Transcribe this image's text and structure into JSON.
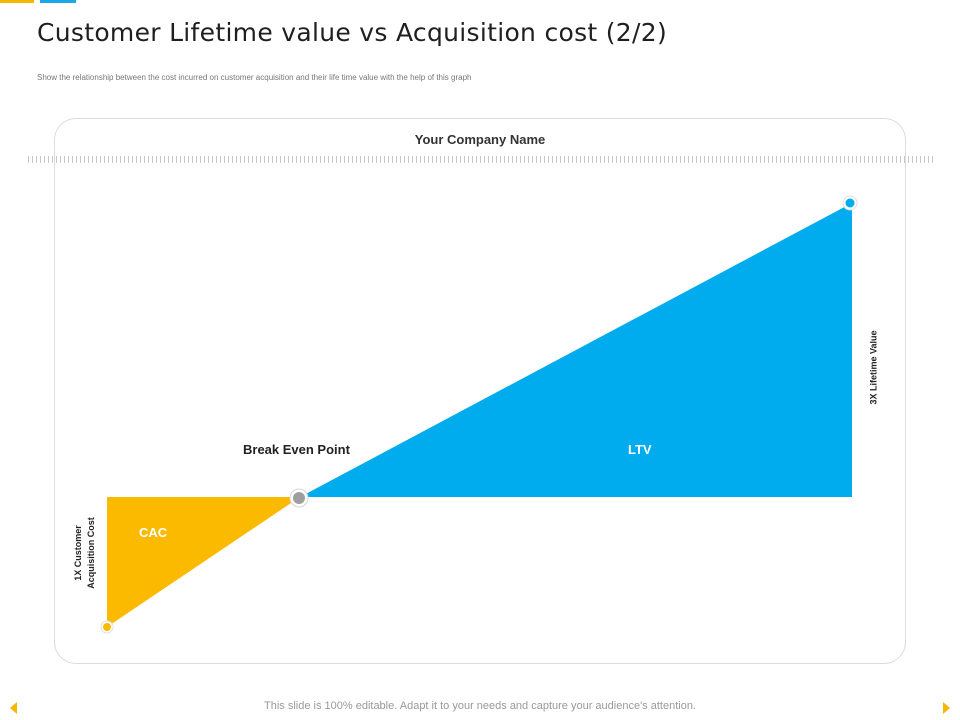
{
  "header": {
    "title": "Customer Lifetime value vs Acquisition cost (2/2)",
    "subtitle": "Show the relationship between the cost incurred on customer acquisition and their life time value with the help of this graph"
  },
  "diagram": {
    "company_name": "Your Company Name",
    "break_even_label": "Break Even Point",
    "ltv_label": "LTV",
    "cac_label": "CAC",
    "cac_axis_line1": "1X Customer",
    "cac_axis_line2": "Acquisition Cost",
    "ltv_axis_label": "3X Lifetime Value",
    "colors": {
      "cac": "#fbb900",
      "ltv": "#00aced",
      "break_even": "#9e9e9e"
    }
  },
  "footer": {
    "note": "This slide is 100% editable. Adapt it to your needs and capture your audience's attention."
  },
  "icons": {
    "prev": "triangle-left-icon",
    "next": "triangle-right-icon"
  },
  "theme": {
    "accent_yellow": "#f5b800",
    "accent_blue": "#1aa9e6"
  }
}
